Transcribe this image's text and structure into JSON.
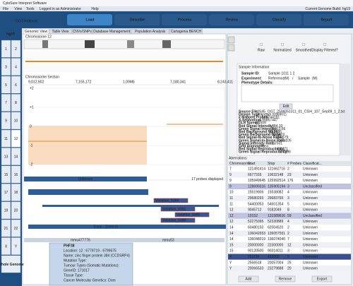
{
  "app_title": "CytoSure Interpret Software",
  "menu": [
    "File",
    "View",
    "Tools",
    "Logged in as Administrator",
    "Help"
  ],
  "genome_build": "Current Genome Build: hg19",
  "protocol": "OGT Protocol",
  "workflow": [
    "Load",
    "Describe",
    "Process",
    "Review",
    "Classify",
    "Report"
  ],
  "tabs": [
    "Genomic View",
    "Table View",
    "CNVs/SNPs",
    "Database Management",
    "Population Analysis",
    "Cartagenia BENCH"
  ],
  "build": "hg19",
  "chromosomes": [
    "1",
    "2",
    "3",
    "4",
    "5",
    "6",
    "7",
    "8",
    "9",
    "10",
    "11",
    "12",
    "13",
    "14",
    "15",
    "16",
    "17",
    "18",
    "19",
    "20",
    "21",
    "22",
    "X",
    "Y"
  ],
  "whole_genome": "Whole Genome",
  "chromosome_title": "Chromosome 12",
  "section": {
    "title": "Chromosome Section",
    "positions": [
      "9,012,502",
      "7,155,172",
      "1.09Mb",
      "7,180,341",
      "8,243,411"
    ],
    "y_labels": [
      "+2",
      "+1",
      "0",
      "-1",
      "-2"
    ],
    "region": "Unknown",
    "probes": "17 probes displayed"
  },
  "tracks": {
    "variations": [
      "Variation_5366",
      "Variation_5391",
      "Variation_5385",
      "Variation_5389"
    ],
    "exon": "Exon - Zoom in",
    "genes": [
      "mmu477776",
      "mmu53"
    ]
  },
  "tooltip": [
    "PHF38",
    "Location: 12 : 6779719 - 6799675",
    "Name: zinc finger protein 384 (CCDSRP4)",
    "Mutation Type:",
    "Tumour Types (Somatic Mutations):",
    "GeneID: 171017",
    "Tissue Type:",
    "Cancer Molecular Genetics: Dom"
  ],
  "display": {
    "options": [
      "Raw",
      "Normalized",
      "Smoothed",
      "Display Filtered?"
    ]
  },
  "sample": {
    "title": "Sample Information",
    "id_label": "Sample ID:",
    "id": "Sample 1011 1 2",
    "experiment_label": "Experiment:",
    "reference": "Reference",
    "ref_unit": "(M)",
    "sep": "/",
    "sample": "Sample",
    "sample_unit": "(M)",
    "phenotype": "Phenotype Details:",
    "edit": "Edit"
  },
  "metrics": [
    [
      "Source File:",
      "US45_OGT_2596051011_01_CGH_107_Sep09_1_2.txt"
    ],
    [
      "Design Type:",
      "Unknown (036901)"
    ],
    [
      "# Mapped Probes:",
      "168744191"
    ],
    [
      "X-Separation:",
      "-4.95867447"
    ],
    [
      "DLR Spread:",
      "0.1509"
    ],
    [
      "Red Signal Intensity:",
      "1,384.33"
    ],
    [
      "Green Signal Intensity:",
      "1,913.66"
    ],
    [
      "Red Background Noise:",
      "22.7886"
    ],
    [
      "Green Background Noise:",
      "13.5619"
    ],
    [
      "Red Signal-to-Noise Ratio:",
      "114.679"
    ],
    [
      "Green Signal-to-Noise Ratio:",
      "141.105"
    ],
    [
      "Signal Intensity Ratio:",
      "1.7501"
    ],
    [
      "Grid Alignment:",
      "Pass"
    ],
    [
      "Red Signal Reproducibility:",
      "0.0371"
    ],
    [
      "Green Signal Reproducibility:",
      "0.0296"
    ]
  ],
  "aberrations": {
    "title": "Aberrations",
    "headers": [
      "Chromosome",
      "Start",
      "Stop",
      "# Probes",
      "Classificat..."
    ],
    "rows": [
      [
        "7",
        "121491414",
        "121662716",
        "2",
        "Unknown"
      ],
      [
        "9",
        "6677316",
        "10632148",
        "23",
        "Unknown"
      ],
      [
        "9",
        "105949645",
        "125992514",
        "176",
        "Unknown"
      ],
      [
        "9",
        "128699316",
        "135905194",
        "3",
        "Unclassified"
      ],
      [
        "10",
        "15519906",
        "15538082",
        "4",
        "Unknown"
      ],
      [
        "11",
        "29680293",
        "29683765",
        "3",
        "Unknown"
      ],
      [
        "11",
        "54400053",
        "54601354",
        "5",
        "Unknown"
      ],
      [
        "12",
        "9045712",
        "9182049",
        "8",
        "Unknown"
      ],
      [
        "12",
        "10152",
        "131589616",
        "59",
        "Unclassified"
      ],
      [
        "12",
        "52275095",
        "52330889",
        "4",
        "Unknown"
      ],
      [
        "14",
        "60480150",
        "62004520",
        "2",
        "Unknown"
      ],
      [
        "14",
        "136042653",
        "136057551",
        "2",
        "Unknown"
      ],
      [
        "14",
        "136048019",
        "136074040",
        "7",
        "Unknown"
      ],
      [
        "15",
        "20000000",
        "22300000",
        "12",
        "Unknown"
      ],
      [
        "15",
        "90120500",
        "90314011",
        "3",
        "Unknown"
      ],
      [
        "X",
        "251196",
        "152000",
        "5",
        "Unknown"
      ],
      [
        "Y",
        "2556518",
        "20057004",
        "25",
        "Unknown"
      ],
      [
        "Y",
        "20066533",
        "23279888",
        "20",
        "Unknown"
      ]
    ]
  },
  "buttons": [
    "Add",
    "Remove",
    "Export"
  ]
}
